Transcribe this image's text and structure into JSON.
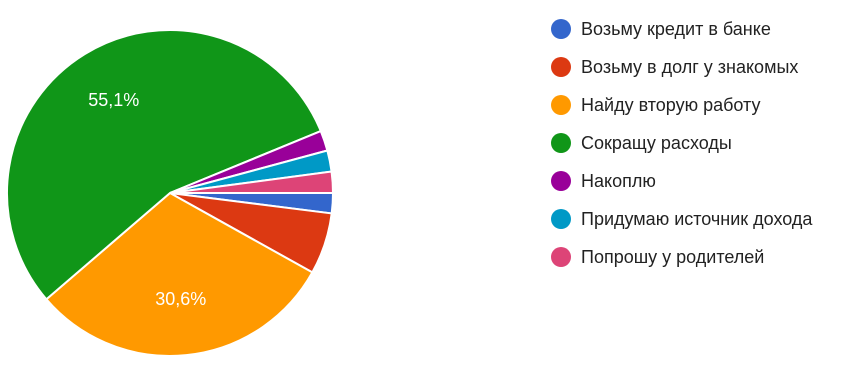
{
  "chart_data": {
    "type": "pie",
    "slices": [
      {
        "label": "Возьму кредит в банке",
        "value": 2.0,
        "color": "#3366cc"
      },
      {
        "label": "Возьму в долг у знакомых",
        "value": 6.1,
        "color": "#dc3912"
      },
      {
        "label": "Найду вторую работу",
        "value": 30.6,
        "color": "#ff9900",
        "data_label": "30,6%"
      },
      {
        "label": "Сокращу расходы",
        "value": 55.1,
        "color": "#109618",
        "data_label": "55,1%"
      },
      {
        "label": "Накоплю",
        "value": 2.0,
        "color": "#990099"
      },
      {
        "label": "Придумаю источник дохода",
        "value": 2.1,
        "color": "#0099c6"
      },
      {
        "label": "Попрошу у родителей",
        "value": 2.1,
        "color": "#dd4477"
      }
    ],
    "legend_position": "right"
  }
}
